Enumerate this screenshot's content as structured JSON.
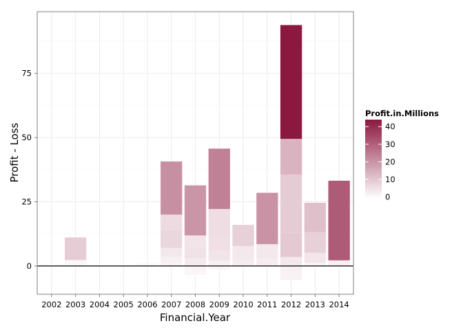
{
  "chart_data": {
    "type": "bar",
    "stacked": true,
    "xlabel": "Financial.Year",
    "ylabel": "Profit - Loss",
    "categories": [
      "2002",
      "2003",
      "2004",
      "2005",
      "2006",
      "2007",
      "2008",
      "2009",
      "2010",
      "2011",
      "2012",
      "2013",
      "2014"
    ],
    "ylim": [
      -11,
      99
    ],
    "y_ticks": [
      0,
      25,
      50,
      75
    ],
    "grid": true,
    "zero_line": true,
    "stacks": [
      {
        "category": "2002",
        "segments": [
          {
            "value": 0.6,
            "fill_value": 0.3
          }
        ]
      },
      {
        "category": "2003",
        "segments": [
          {
            "value": 2.3,
            "fill_value": 0.5
          },
          {
            "value": 8.8,
            "fill_value": 8.8
          }
        ]
      },
      {
        "category": "2004",
        "segments": [
          {
            "value": 0.4,
            "fill_value": 0.2
          }
        ]
      },
      {
        "category": "2005",
        "segments": [
          {
            "value": 0.4,
            "fill_value": 0.2
          }
        ]
      },
      {
        "category": "2006",
        "segments": [
          {
            "value": 0.6,
            "fill_value": 0.3
          },
          {
            "value": 0.6,
            "fill_value": 0.3
          }
        ]
      },
      {
        "category": "2007",
        "segments": [
          {
            "value": 1.5,
            "fill_value": 1.5
          },
          {
            "value": 2.0,
            "fill_value": 2.0
          },
          {
            "value": 3.5,
            "fill_value": 3.5
          },
          {
            "value": 7.0,
            "fill_value": 7.0
          },
          {
            "value": 6.0,
            "fill_value": 6.0
          },
          {
            "value": 20.7,
            "fill_value": 20.7
          }
        ]
      },
      {
        "category": "2008",
        "segments": [
          {
            "value": -3.5,
            "fill_value": 0.8
          },
          {
            "value": 3.0,
            "fill_value": 3.0
          },
          {
            "value": 4.7,
            "fill_value": 4.7
          },
          {
            "value": 4.2,
            "fill_value": 4.2
          },
          {
            "value": 19.5,
            "fill_value": 19.5
          }
        ]
      },
      {
        "category": "2009",
        "segments": [
          {
            "value": -1.5,
            "fill_value": 0.5
          },
          {
            "value": 2.0,
            "fill_value": 2.0
          },
          {
            "value": 4.0,
            "fill_value": 4.0
          },
          {
            "value": 5.0,
            "fill_value": 5.0
          },
          {
            "value": 11.2,
            "fill_value": 5.5
          },
          {
            "value": 23.5,
            "fill_value": 23.5
          }
        ]
      },
      {
        "category": "2010",
        "segments": [
          {
            "value": 2.5,
            "fill_value": 2.5
          },
          {
            "value": 5.3,
            "fill_value": 3.5
          },
          {
            "value": 8.2,
            "fill_value": 8.2
          }
        ]
      },
      {
        "category": "2011",
        "segments": [
          {
            "value": 2.7,
            "fill_value": 2.5
          },
          {
            "value": 5.8,
            "fill_value": 3.5
          },
          {
            "value": 20.0,
            "fill_value": 20.0
          }
        ]
      },
      {
        "category": "2012",
        "segments": [
          {
            "value": -5.5,
            "fill_value": 1.5
          },
          {
            "value": 3.5,
            "fill_value": 3.5
          },
          {
            "value": 9.5,
            "fill_value": 9.5
          },
          {
            "value": 22.6,
            "fill_value": 9.0
          },
          {
            "value": 13.9,
            "fill_value": 13.9
          },
          {
            "value": 44.3,
            "fill_value": 44.3
          }
        ]
      },
      {
        "category": "2013",
        "segments": [
          {
            "value": 1.3,
            "fill_value": 1.3
          },
          {
            "value": 3.8,
            "fill_value": 3.8
          },
          {
            "value": 8.1,
            "fill_value": 8.1
          },
          {
            "value": 11.4,
            "fill_value": 11.4
          }
        ]
      },
      {
        "category": "2014",
        "segments": [
          {
            "value": 2.2,
            "fill_value": 2.2
          },
          {
            "value": 31.0,
            "fill_value": 31.0
          }
        ]
      }
    ],
    "legend": {
      "title": "Profit.in.Millions",
      "type": "colorbar",
      "placement": "right",
      "ticks": [
        0,
        10,
        20,
        30,
        40
      ],
      "range": [
        -1,
        44
      ],
      "low_color": "#ffffff",
      "high_color": "#8b183e"
    },
    "colors": {
      "bar_low": "#ffffff",
      "bar_high": "#8b183e",
      "panel_border": "#7f7f7f",
      "grid": "#ebebeb",
      "zero_line": "#000000"
    }
  }
}
